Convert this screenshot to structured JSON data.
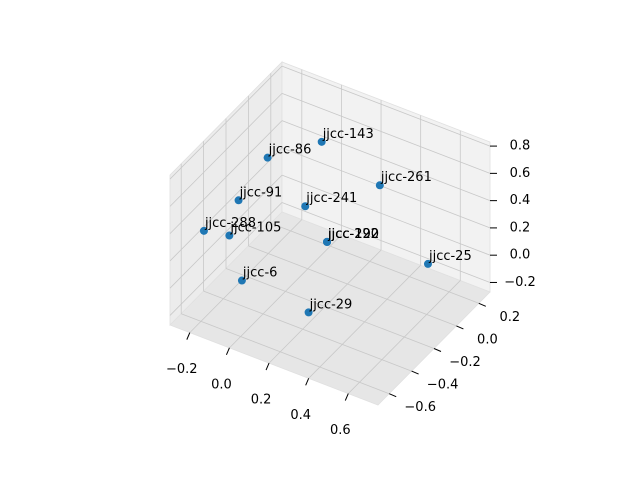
{
  "chart_data": {
    "type": "scatter3d",
    "labels": [
      "jjcc-143",
      "jjcc-86",
      "jjcc-261",
      "jjcc-91",
      "jjcc-241",
      "jjcc-288",
      "jjcc-105",
      "jjcc-190",
      "jjcc-122",
      "jjcc-292",
      "jjcc-25",
      "jjcc-6",
      "jjcc-29"
    ],
    "x": [
      0.07,
      -0.09,
      0.42,
      -0.18,
      0.1,
      -0.27,
      -0.17,
      0.21,
      0.21,
      0.21,
      0.55,
      -0.05,
      0.23
    ],
    "y": [
      0.0,
      -0.2,
      -0.1,
      -0.3,
      -0.2,
      -0.45,
      -0.4,
      -0.2,
      -0.2,
      -0.2,
      0.1,
      -0.5,
      -0.4
    ],
    "z": [
      0.7,
      0.66,
      0.66,
      0.38,
      0.41,
      0.23,
      0.21,
      0.21,
      0.21,
      0.21,
      -0.01,
      0.03,
      -0.13
    ],
    "color": "#1f77b4",
    "xlim": [
      -0.3,
      0.75
    ],
    "ylim": [
      -0.7,
      0.3
    ],
    "zlim": [
      -0.27,
      0.83
    ],
    "xticks": [
      {
        "value": -0.2,
        "label": "−0.2"
      },
      {
        "value": 0.0,
        "label": "0.0"
      },
      {
        "value": 0.2,
        "label": "0.2"
      },
      {
        "value": 0.4,
        "label": "0.4"
      },
      {
        "value": 0.6,
        "label": "0.6"
      }
    ],
    "yticks": [
      {
        "value": -0.6,
        "label": "−0.6"
      },
      {
        "value": -0.4,
        "label": "−0.4"
      },
      {
        "value": -0.2,
        "label": "−0.2"
      },
      {
        "value": 0.0,
        "label": "0.0"
      },
      {
        "value": 0.2,
        "label": "0.2"
      }
    ],
    "zticks": [
      {
        "value": -0.2,
        "label": "−0.2"
      },
      {
        "value": 0.0,
        "label": "0.0"
      },
      {
        "value": 0.2,
        "label": "0.2"
      },
      {
        "value": 0.4,
        "label": "0.4"
      },
      {
        "value": 0.6,
        "label": "0.6"
      },
      {
        "value": 0.8,
        "label": "0.8"
      }
    ],
    "grid": true
  }
}
